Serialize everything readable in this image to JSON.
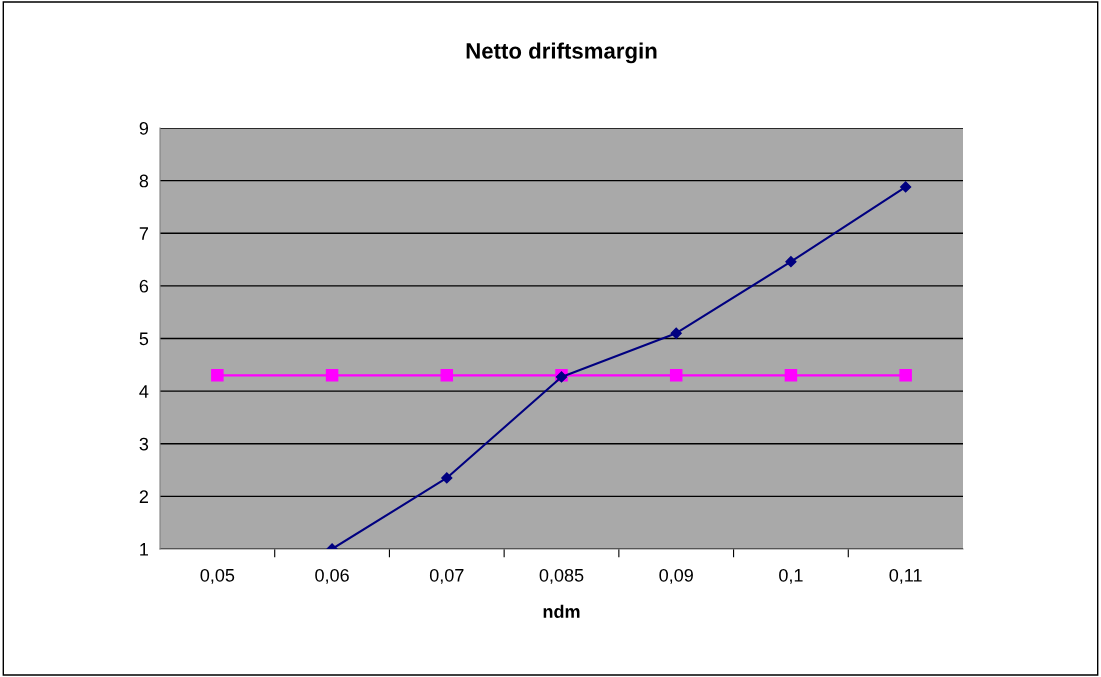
{
  "chart_data": {
    "type": "line",
    "title": "Netto driftsmargin",
    "xlabel": "ndm",
    "categories": [
      "0,05",
      "0,06",
      "0,07",
      "0,085",
      "0,09",
      "0,1",
      "0,11"
    ],
    "series": [
      {
        "color": "#000080",
        "marker": "diamond",
        "values": [
          null,
          1.0,
          2.35,
          4.27,
          5.1,
          6.46,
          7.88
        ]
      },
      {
        "color": "#ff00ff",
        "marker": "square",
        "values": [
          4.3,
          4.3,
          4.3,
          4.3,
          4.3,
          4.3,
          4.3
        ]
      }
    ],
    "ylim": [
      1,
      9
    ],
    "yticks": [
      1,
      2,
      3,
      4,
      5,
      6,
      7,
      8,
      9
    ],
    "grid": "y",
    "legend": false
  }
}
